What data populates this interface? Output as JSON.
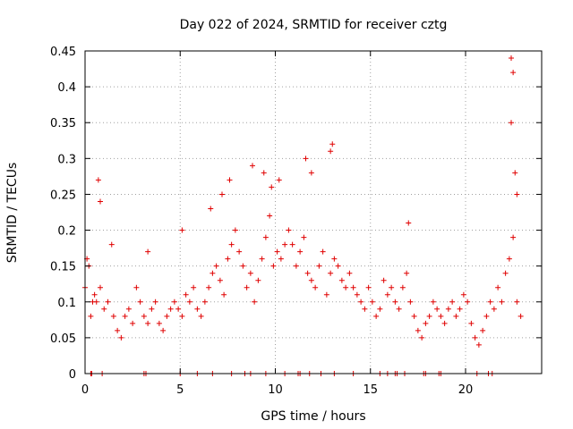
{
  "chart_data": {
    "type": "scatter",
    "title": "Day 022 of 2024, SRMTID for receiver cztg",
    "xlabel": "GPS time / hours",
    "ylabel": "SRMTID / TECUs",
    "xlim": [
      0,
      24
    ],
    "ylim": [
      0,
      0.45
    ],
    "xticks": [
      0,
      5,
      10,
      15,
      20
    ],
    "yticks": [
      0,
      0.05,
      0.1,
      0.15,
      0.2,
      0.25,
      0.3,
      0.35,
      0.4,
      0.45
    ],
    "grid": true,
    "marker": "plus",
    "color": "#e00000",
    "series": [
      {
        "name": "SRMTID",
        "x": [
          0.0,
          0.1,
          0.2,
          0.3,
          0.4,
          0.5,
          0.6,
          0.8,
          1.0,
          1.2,
          1.5,
          1.7,
          1.9,
          2.1,
          2.3,
          2.5,
          2.7,
          2.9,
          3.1,
          3.3,
          3.5,
          3.7,
          3.9,
          4.1,
          4.3,
          4.5,
          4.7,
          4.9,
          5.1,
          5.3,
          5.5,
          5.7,
          5.9,
          6.1,
          6.3,
          6.5,
          6.7,
          6.9,
          7.1,
          7.3,
          7.5,
          7.7,
          7.9,
          8.1,
          8.3,
          8.5,
          8.7,
          8.9,
          9.1,
          9.3,
          9.5,
          9.7,
          9.9,
          10.1,
          10.3,
          10.5,
          10.7,
          10.9,
          11.1,
          11.3,
          11.5,
          11.7,
          11.9,
          12.1,
          12.3,
          12.5,
          12.7,
          12.9,
          13.1,
          13.3,
          13.5,
          13.7,
          13.9,
          14.1,
          14.3,
          14.5,
          14.7,
          14.9,
          15.1,
          15.3,
          15.5,
          15.7,
          15.9,
          16.1,
          16.3,
          16.5,
          16.7,
          16.9,
          17.1,
          17.3,
          17.5,
          17.7,
          17.9,
          18.1,
          18.3,
          18.5,
          18.7,
          18.9,
          19.1,
          19.3,
          19.5,
          19.7,
          19.9,
          20.1,
          20.3,
          20.5,
          20.7,
          20.9,
          21.1,
          21.3,
          21.5,
          21.7,
          21.9,
          22.1,
          22.3,
          22.5,
          22.7,
          22.9,
          0.7,
          0.8,
          1.4,
          3.3,
          5.1,
          6.6,
          7.2,
          7.6,
          8.8,
          9.4,
          9.8,
          10.2,
          11.6,
          11.9,
          12.9,
          13.0,
          17.0,
          22.4,
          22.5,
          22.4,
          22.6,
          22.7
        ],
        "y": [
          0.12,
          0.16,
          0.15,
          0.08,
          0.1,
          0.11,
          0.1,
          0.12,
          0.09,
          0.1,
          0.08,
          0.06,
          0.05,
          0.08,
          0.09,
          0.07,
          0.12,
          0.1,
          0.08,
          0.07,
          0.09,
          0.1,
          0.07,
          0.06,
          0.08,
          0.09,
          0.1,
          0.09,
          0.08,
          0.11,
          0.1,
          0.12,
          0.09,
          0.08,
          0.1,
          0.12,
          0.14,
          0.15,
          0.13,
          0.11,
          0.16,
          0.18,
          0.2,
          0.17,
          0.15,
          0.12,
          0.14,
          0.1,
          0.13,
          0.16,
          0.19,
          0.22,
          0.15,
          0.17,
          0.16,
          0.18,
          0.2,
          0.18,
          0.15,
          0.17,
          0.19,
          0.14,
          0.13,
          0.12,
          0.15,
          0.17,
          0.11,
          0.14,
          0.16,
          0.15,
          0.13,
          0.12,
          0.14,
          0.12,
          0.11,
          0.1,
          0.09,
          0.12,
          0.1,
          0.08,
          0.09,
          0.13,
          0.11,
          0.12,
          0.1,
          0.09,
          0.12,
          0.14,
          0.1,
          0.08,
          0.06,
          0.05,
          0.07,
          0.08,
          0.1,
          0.09,
          0.08,
          0.07,
          0.09,
          0.1,
          0.08,
          0.09,
          0.11,
          0.1,
          0.07,
          0.05,
          0.04,
          0.06,
          0.08,
          0.1,
          0.09,
          0.12,
          0.1,
          0.14,
          0.16,
          0.19,
          0.1,
          0.08,
          0.27,
          0.24,
          0.18,
          0.17,
          0.2,
          0.23,
          0.25,
          0.27,
          0.29,
          0.28,
          0.26,
          0.27,
          0.3,
          0.28,
          0.31,
          0.32,
          0.21,
          0.44,
          0.42,
          0.35,
          0.28,
          0.25
        ]
      }
    ],
    "zero_marks_x": [
      0.3,
      0.35,
      0.9,
      3.1,
      3.2,
      5.0,
      5.9,
      6.7,
      7.7,
      8.4,
      8.7,
      9.5,
      10.5,
      11.2,
      11.3,
      11.8,
      12.4,
      13.1,
      14.1,
      15.5,
      15.9,
      16.3,
      16.4,
      16.8,
      17.8,
      17.9,
      18.6,
      18.7,
      20.6,
      21.2,
      21.4
    ]
  }
}
